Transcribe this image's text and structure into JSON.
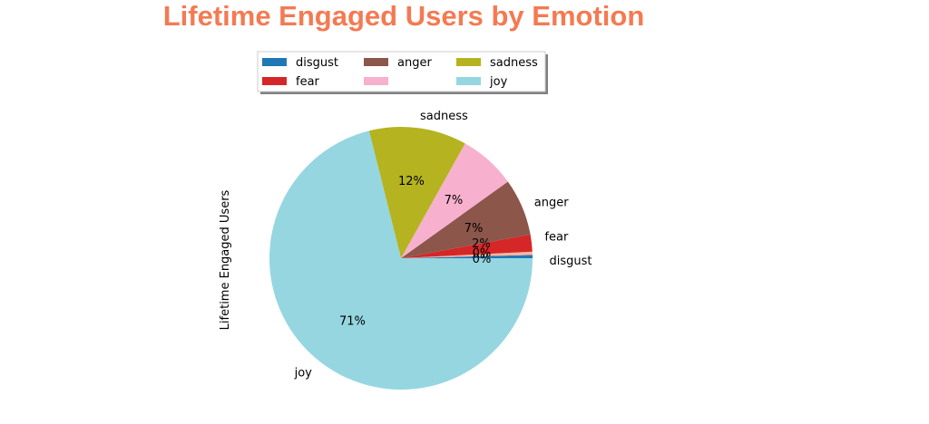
{
  "chart_data": {
    "type": "pie",
    "title": "Lifetime Engaged Users by Emotion",
    "ylabel": "Lifetime Engaged Users",
    "legend_placement": "top-center",
    "legend_columns": 3,
    "start_angle_deg": 0,
    "direction": "counterclockwise",
    "slices": [
      {
        "label": "disgust",
        "value": 0.4,
        "pct_label": "0%",
        "color": "#1f77b4"
      },
      {
        "label": "",
        "value": 0.4,
        "pct_label": "0%",
        "color": "#f7b6a0"
      },
      {
        "label": "fear",
        "value": 2.1,
        "pct_label": "2%",
        "color": "#d62728"
      },
      {
        "label": "anger",
        "value": 7.0,
        "pct_label": "7%",
        "color": "#8c564b"
      },
      {
        "label": "",
        "value": 7.0,
        "pct_label": "7%",
        "color": "#f7b0cd"
      },
      {
        "label": "sadness",
        "value": 12.0,
        "pct_label": "12%",
        "color": "#b5b31f"
      },
      {
        "label": "joy",
        "value": 71.1,
        "pct_label": "71%",
        "color": "#95d6e1"
      }
    ],
    "legend": [
      {
        "label": "disgust",
        "color": "#1f77b4"
      },
      {
        "label": "fear",
        "color": "#d62728"
      },
      {
        "label": "anger",
        "color": "#8c564b"
      },
      {
        "label": "",
        "color": "#f7b0cd"
      },
      {
        "label": "sadness",
        "color": "#b5b31f"
      },
      {
        "label": "joy",
        "color": "#95d6e1"
      }
    ],
    "title_color": "#f47a52"
  }
}
